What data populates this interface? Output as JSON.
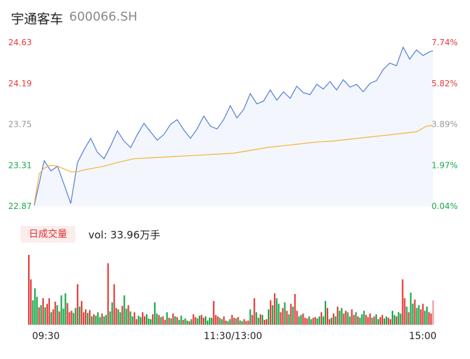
{
  "header": {
    "name": "宇通客车",
    "code": "600066.SH"
  },
  "volume_panel": {
    "tab_label": "日成交量",
    "readout": "vol: 33.96万手"
  },
  "colors": {
    "price_line": "#4f7bd6",
    "avg_line": "#f2b430",
    "up": "#e83a3a",
    "down": "#1aa84c",
    "neutral": "#999999"
  },
  "chart_data": [
    {
      "type": "line",
      "title": "",
      "y_labels": [
        "24.63",
        "24.19",
        "23.75",
        "23.31",
        "22.87"
      ],
      "y_pct_labels": [
        "7.74%",
        "5.82%",
        "3.89%",
        "1.97%",
        "0.04%"
      ],
      "ylim": [
        22.87,
        24.63
      ],
      "x_ticks": [
        "09:30",
        "11:30/13:00",
        "15:00"
      ],
      "x_range": [
        0,
        240
      ],
      "series": [
        {
          "role": "price",
          "x": [
            0,
            3,
            6,
            10,
            14,
            18,
            22,
            26,
            30,
            34,
            38,
            42,
            46,
            50,
            54,
            58,
            62,
            66,
            70,
            74,
            78,
            82,
            86,
            90,
            94,
            98,
            102,
            106,
            110,
            114,
            118,
            122,
            126,
            130,
            134,
            138,
            142,
            146,
            150,
            154,
            158,
            162,
            166,
            170,
            174,
            178,
            182,
            186,
            190,
            194,
            198,
            202,
            206,
            210,
            214,
            218,
            222,
            226,
            230,
            234,
            238,
            240
          ],
          "values": [
            22.88,
            23.12,
            23.36,
            23.25,
            23.3,
            23.1,
            22.9,
            23.34,
            23.48,
            23.6,
            23.45,
            23.38,
            23.52,
            23.68,
            23.57,
            23.5,
            23.64,
            23.76,
            23.67,
            23.58,
            23.64,
            23.75,
            23.8,
            23.69,
            23.6,
            23.7,
            23.84,
            23.73,
            23.7,
            23.8,
            23.95,
            23.82,
            23.91,
            24.08,
            23.97,
            24.0,
            24.12,
            24.01,
            24.1,
            24.03,
            24.16,
            24.09,
            24.07,
            24.18,
            24.13,
            24.21,
            24.12,
            24.23,
            24.15,
            24.18,
            24.1,
            24.19,
            24.22,
            24.34,
            24.41,
            24.38,
            24.58,
            24.45,
            24.55,
            24.49,
            24.53,
            24.54
          ]
        },
        {
          "role": "average",
          "x": [
            0,
            3,
            6,
            10,
            14,
            18,
            22,
            26,
            30,
            36,
            42,
            50,
            60,
            70,
            80,
            90,
            100,
            110,
            120,
            130,
            140,
            150,
            160,
            170,
            180,
            190,
            200,
            210,
            220,
            230,
            236,
            240
          ],
          "values": [
            22.9,
            23.22,
            23.28,
            23.31,
            23.3,
            23.27,
            23.24,
            23.24,
            23.26,
            23.28,
            23.3,
            23.34,
            23.38,
            23.39,
            23.4,
            23.41,
            23.42,
            23.43,
            23.44,
            23.47,
            23.5,
            23.52,
            23.54,
            23.56,
            23.57,
            23.59,
            23.61,
            23.63,
            23.65,
            23.67,
            23.73,
            23.74
          ]
        }
      ]
    },
    {
      "type": "bar",
      "title": "",
      "ylim": [
        0,
        100
      ],
      "colors_key": [
        "up",
        "down",
        "neutral"
      ],
      "values": [
        100,
        65,
        35,
        52,
        40,
        25,
        28,
        38,
        25,
        30,
        38,
        18,
        22,
        33,
        28,
        19,
        42,
        23,
        45,
        31,
        18,
        20,
        17,
        24,
        58,
        26,
        34,
        18,
        22,
        17,
        21,
        12,
        15,
        13,
        18,
        11,
        16,
        12,
        14,
        88,
        19,
        32,
        58,
        24,
        22,
        18,
        27,
        42,
        23,
        28,
        19,
        12,
        18,
        8,
        13,
        11,
        18,
        12,
        15,
        9,
        8,
        15,
        32,
        16,
        14,
        11,
        12,
        7,
        18,
        10,
        9,
        16,
        12,
        11,
        7,
        13,
        7,
        9,
        6,
        5,
        8,
        15,
        11,
        9,
        13,
        14,
        10,
        12,
        6,
        10,
        10,
        34,
        14,
        12,
        10,
        8,
        12,
        6,
        5,
        8,
        14,
        10,
        9,
        11,
        6,
        5,
        8,
        5,
        6,
        22,
        14,
        38,
        18,
        10,
        15,
        14,
        7,
        8,
        22,
        35,
        28,
        45,
        38,
        30,
        18,
        24,
        32,
        20,
        15,
        30,
        26,
        44,
        20,
        12,
        14,
        16,
        10,
        9,
        12,
        8,
        10,
        11,
        9,
        12,
        18,
        12,
        34,
        24,
        8,
        10,
        16,
        12,
        26,
        20,
        24,
        16,
        20,
        18,
        12,
        22,
        14,
        18,
        12,
        10,
        15,
        20,
        14,
        11,
        16,
        10,
        12,
        15,
        8,
        11,
        14,
        9,
        12,
        10,
        8,
        20,
        14,
        12,
        18,
        16,
        65,
        38,
        26,
        18,
        46,
        30,
        36,
        24,
        28,
        22,
        30,
        20,
        26,
        18,
        16,
        35
      ],
      "dirs": "uudddududuuduududdduuudduduuudududdduddudduudduddudduudduudddudduduududududdudduduudduudddduuudduudduududduuuduudduduudududduudududuudduuudduuddudduudududduudduududdduuududduudduuddudduududdudduudduu"
    }
  ]
}
